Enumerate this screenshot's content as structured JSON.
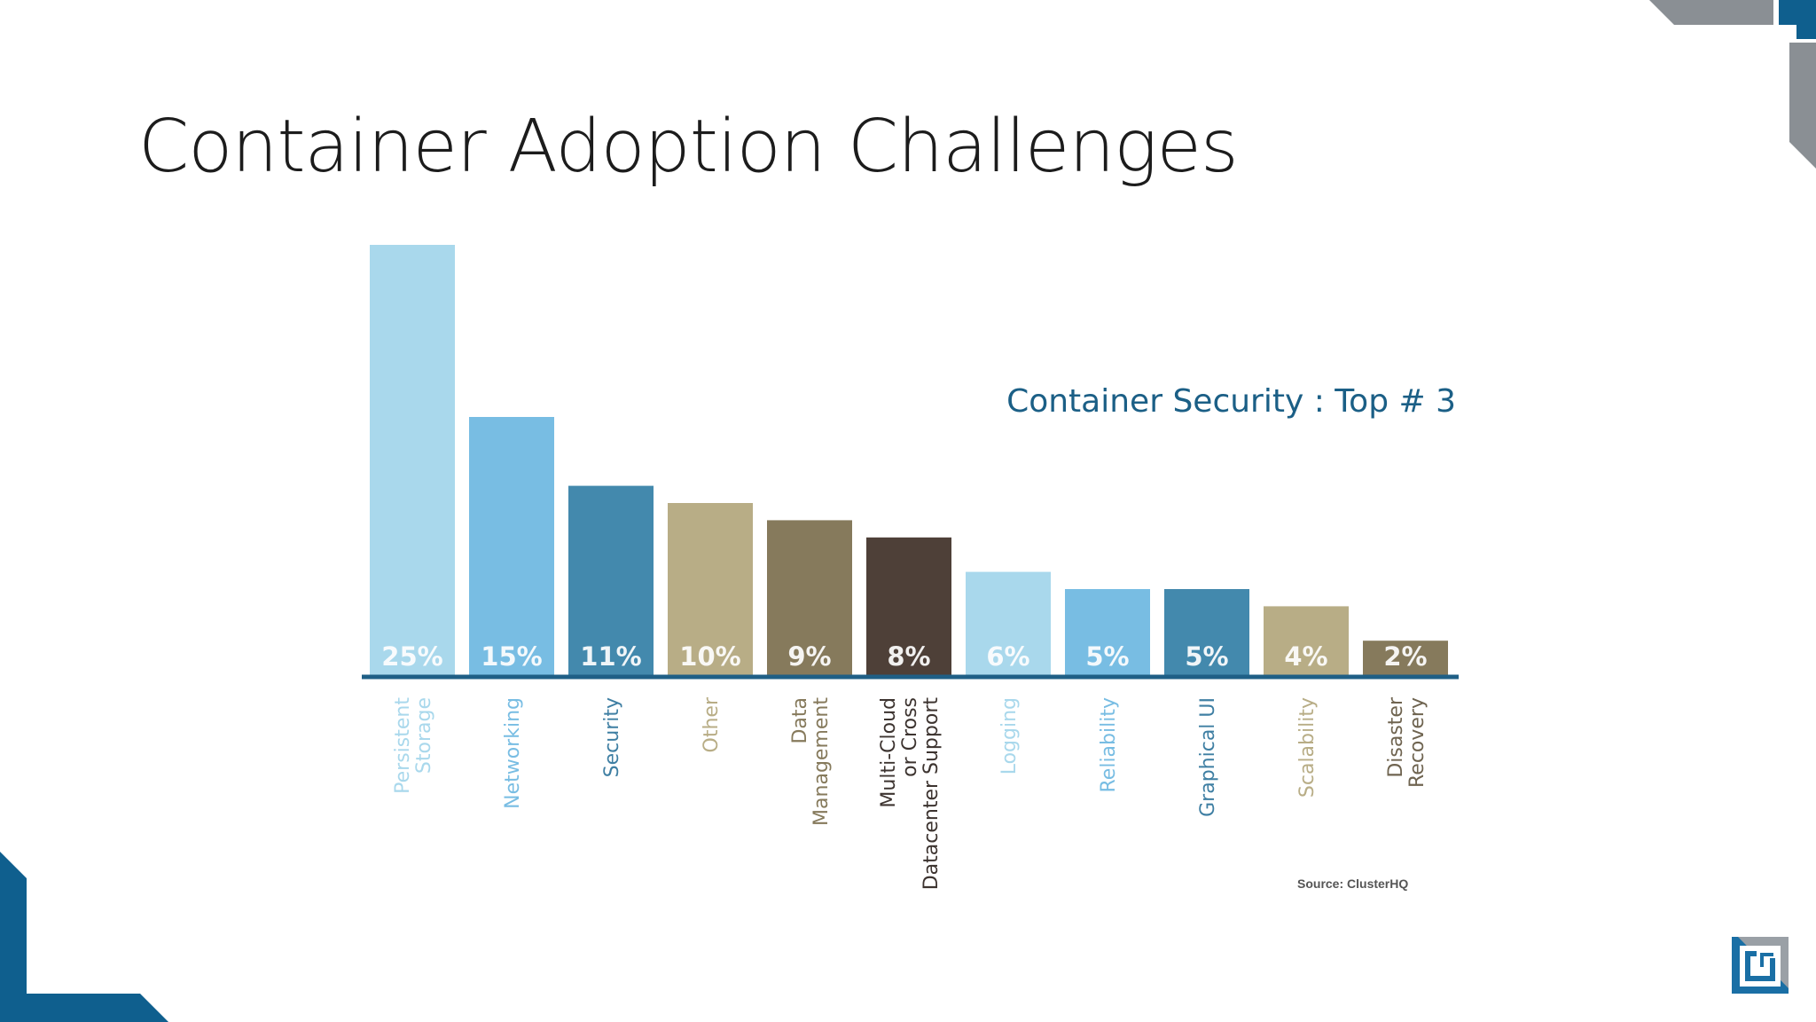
{
  "slide": {
    "title": "Container Adoption Challenges",
    "source": "Source: ClusterHQ"
  },
  "chart_data": {
    "type": "bar",
    "categories": [
      "Persistent Storage",
      "Networking",
      "Security",
      "Other",
      "Data Management",
      "Multi-Cloud or Cross Datacenter Support",
      "Logging",
      "Reliability",
      "Graphical UI",
      "Scalability",
      "Disaster Recovery"
    ],
    "category_lines": [
      [
        "Persistent",
        "Storage"
      ],
      [
        "Networking"
      ],
      [
        "Security"
      ],
      [
        "Other"
      ],
      [
        "Data",
        "Management"
      ],
      [
        "Multi-Cloud",
        "or Cross",
        "Datacenter Support"
      ],
      [
        "Logging"
      ],
      [
        "Reliability"
      ],
      [
        "Graphical UI"
      ],
      [
        "Scalability"
      ],
      [
        "Disaster",
        "Recovery"
      ]
    ],
    "values": [
      25,
      15,
      11,
      10,
      9,
      8,
      6,
      5,
      5,
      4,
      2
    ],
    "value_labels": [
      "25%",
      "15%",
      "11%",
      "10%",
      "9%",
      "8%",
      "6%",
      "5%",
      "5%",
      "4%",
      "2%"
    ],
    "colors": [
      "#a9d8ec",
      "#78bde3",
      "#4389ad",
      "#b8ad86",
      "#867a5c",
      "#4e4038",
      "#a9d8ec",
      "#78bde3",
      "#4389ad",
      "#b8ad86",
      "#867a5c"
    ],
    "label_colors": [
      "#a9d8ec",
      "#78bde3",
      "#3f7fa3",
      "#b8ad86",
      "#867a5c",
      "#3d3430",
      "#a9d8ec",
      "#78bde3",
      "#3f7fa3",
      "#b8ad86",
      "#6f6450"
    ],
    "annotation": "Container Security : Top # 3",
    "annotation_color": "#1b5f86",
    "axis_color": "#1f5f86",
    "ylim": [
      0,
      25
    ],
    "grid": false,
    "legend": "none"
  }
}
